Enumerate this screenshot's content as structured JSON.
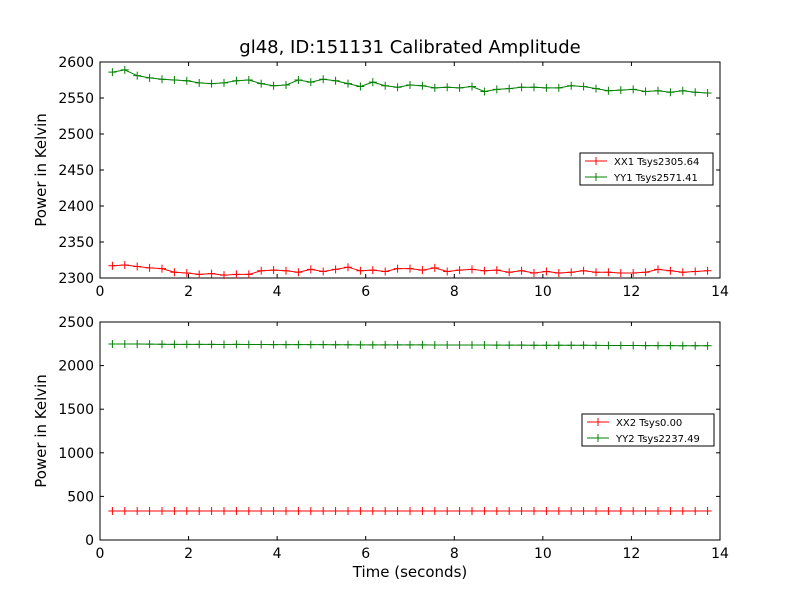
{
  "title": "gl48, ID:151131 Calibrated Amplitude",
  "chart_data": [
    {
      "type": "line",
      "title": "gl48, ID:151131 Calibrated Amplitude",
      "xlabel": "",
      "ylabel": "Power in Kelvin",
      "xlim": [
        0,
        14
      ],
      "ylim": [
        2300,
        2600
      ],
      "xticks": [
        "0",
        "2",
        "4",
        "6",
        "8",
        "10",
        "12",
        "14"
      ],
      "yticks": [
        "2300",
        "2350",
        "2400",
        "2450",
        "2500",
        "2550",
        "2600"
      ],
      "grid": false,
      "legend_position": "right",
      "x": [
        0.28,
        0.56,
        0.84,
        1.12,
        1.4,
        1.68,
        1.96,
        2.24,
        2.52,
        2.8,
        3.08,
        3.36,
        3.64,
        3.92,
        4.2,
        4.48,
        4.76,
        5.04,
        5.32,
        5.6,
        5.88,
        6.16,
        6.44,
        6.72,
        7.0,
        7.28,
        7.56,
        7.84,
        8.12,
        8.4,
        8.68,
        8.96,
        9.24,
        9.52,
        9.8,
        10.08,
        10.36,
        10.64,
        10.92,
        11.2,
        11.48,
        11.76,
        12.04,
        12.32,
        12.6,
        12.88,
        13.16,
        13.44,
        13.72
      ],
      "series": [
        {
          "name": "XX1 Tsys2305.64",
          "color": "#ff0000",
          "values": [
            2317,
            2318,
            2316,
            2314,
            2313,
            2308,
            2307,
            2305,
            2306,
            2304,
            2305,
            2305,
            2310,
            2311,
            2310,
            2308,
            2312,
            2309,
            2312,
            2315,
            2310,
            2311,
            2309,
            2313,
            2313,
            2311,
            2314,
            2309,
            2311,
            2312,
            2310,
            2311,
            2308,
            2310,
            2307,
            2309,
            2307,
            2308,
            2310,
            2308,
            2308,
            2307,
            2307,
            2308,
            2312,
            2310,
            2308,
            2309,
            2310
          ]
        },
        {
          "name": "YY1 Tsys2571.41",
          "color": "#008000",
          "values": [
            2586,
            2589,
            2581,
            2578,
            2576,
            2575,
            2574,
            2571,
            2570,
            2571,
            2574,
            2575,
            2570,
            2567,
            2568,
            2575,
            2572,
            2576,
            2574,
            2570,
            2566,
            2572,
            2567,
            2565,
            2568,
            2567,
            2564,
            2565,
            2564,
            2566,
            2559,
            2562,
            2563,
            2565,
            2565,
            2564,
            2564,
            2567,
            2566,
            2563,
            2560,
            2561,
            2562,
            2559,
            2560,
            2558,
            2560,
            2558,
            2557
          ]
        }
      ]
    },
    {
      "type": "line",
      "title": "",
      "xlabel": "Time (seconds)",
      "ylabel": "Power in Kelvin",
      "xlim": [
        0,
        14
      ],
      "ylim": [
        0,
        2500
      ],
      "xticks": [
        "0",
        "2",
        "4",
        "6",
        "8",
        "10",
        "12",
        "14"
      ],
      "yticks": [
        "0",
        "500",
        "1000",
        "1500",
        "2000",
        "2500"
      ],
      "grid": false,
      "legend_position": "right",
      "x": [
        0.28,
        0.56,
        0.84,
        1.12,
        1.4,
        1.68,
        1.96,
        2.24,
        2.52,
        2.8,
        3.08,
        3.36,
        3.64,
        3.92,
        4.2,
        4.48,
        4.76,
        5.04,
        5.32,
        5.6,
        5.88,
        6.16,
        6.44,
        6.72,
        7.0,
        7.28,
        7.56,
        7.84,
        8.12,
        8.4,
        8.68,
        8.96,
        9.24,
        9.52,
        9.8,
        10.08,
        10.36,
        10.64,
        10.92,
        11.2,
        11.48,
        11.76,
        12.04,
        12.32,
        12.6,
        12.88,
        13.16,
        13.44,
        13.72
      ],
      "series": [
        {
          "name": "XX2 Tsys0.00",
          "color": "#ff0000",
          "values": [
            333,
            333,
            333,
            333,
            333,
            333,
            333,
            333,
            333,
            333,
            333,
            333,
            333,
            333,
            333,
            333,
            333,
            333,
            333,
            333,
            333,
            333,
            333,
            333,
            333,
            333,
            333,
            333,
            333,
            333,
            333,
            333,
            333,
            333,
            333,
            333,
            333,
            333,
            333,
            333,
            333,
            333,
            333,
            333,
            333,
            333,
            333,
            333,
            333
          ]
        },
        {
          "name": "YY2 Tsys2237.49",
          "color": "#008000",
          "values": [
            2247,
            2248,
            2247,
            2246,
            2245,
            2244,
            2244,
            2243,
            2243,
            2242,
            2243,
            2242,
            2242,
            2241,
            2241,
            2240,
            2240,
            2240,
            2239,
            2239,
            2238,
            2238,
            2238,
            2237,
            2237,
            2237,
            2236,
            2236,
            2236,
            2236,
            2236,
            2235,
            2235,
            2235,
            2234,
            2234,
            2234,
            2233,
            2233,
            2232,
            2231,
            2230,
            2230,
            2229,
            2229,
            2229,
            2228,
            2228,
            2227
          ]
        }
      ]
    }
  ]
}
